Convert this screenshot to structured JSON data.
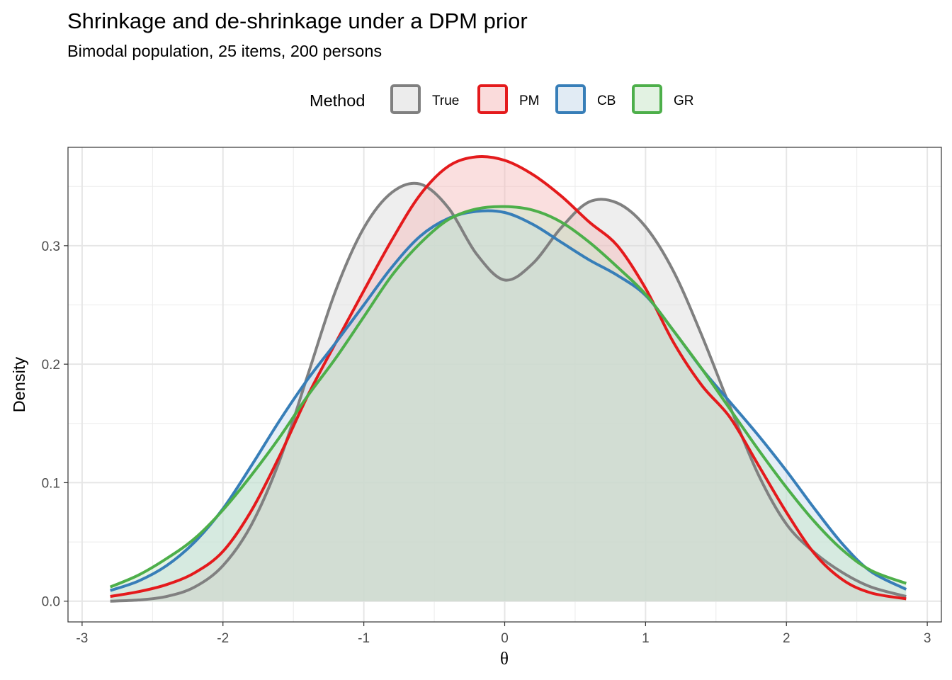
{
  "chart_data": {
    "type": "area",
    "title": "Shrinkage and de-shrinkage under a DPM prior",
    "subtitle": "Bimodal population, 25 items, 200 persons",
    "xlabel": "θ",
    "ylabel": "Density",
    "xlim": [
      -3,
      3
    ],
    "ylim": [
      0,
      0.38
    ],
    "x_ticks": [
      -3,
      -2,
      -1,
      0,
      1,
      2,
      3
    ],
    "x_tick_labels": [
      "-3",
      "-2",
      "-1",
      "0",
      "1",
      "2",
      "3"
    ],
    "y_ticks": [
      0.0,
      0.1,
      0.2,
      0.3
    ],
    "y_tick_labels": [
      "0.0",
      "0.1",
      "0.2",
      "0.3"
    ],
    "grid": true,
    "legend": {
      "title": "Method",
      "position": "top"
    },
    "x": [
      -2.8,
      -2.6,
      -2.4,
      -2.2,
      -2.0,
      -1.8,
      -1.6,
      -1.4,
      -1.2,
      -1.0,
      -0.8,
      -0.6,
      -0.4,
      -0.2,
      0.0,
      0.2,
      0.4,
      0.6,
      0.8,
      1.0,
      1.2,
      1.4,
      1.6,
      1.8,
      2.0,
      2.2,
      2.4,
      2.6,
      2.85
    ],
    "series": [
      {
        "name": "True",
        "color": "#808080",
        "fill": "#d9d9d9",
        "values": [
          0.0,
          0.001,
          0.004,
          0.012,
          0.03,
          0.064,
          0.118,
          0.19,
          0.262,
          0.315,
          0.345,
          0.352,
          0.332,
          0.293,
          0.271,
          0.285,
          0.315,
          0.337,
          0.336,
          0.316,
          0.278,
          0.224,
          0.164,
          0.107,
          0.065,
          0.041,
          0.024,
          0.012,
          0.004
        ]
      },
      {
        "name": "PM",
        "color": "#e41a1c",
        "fill": "#f5b7b8",
        "values": [
          0.004,
          0.008,
          0.014,
          0.024,
          0.042,
          0.076,
          0.122,
          0.173,
          0.218,
          0.262,
          0.305,
          0.343,
          0.367,
          0.375,
          0.372,
          0.36,
          0.342,
          0.32,
          0.3,
          0.264,
          0.218,
          0.182,
          0.155,
          0.115,
          0.075,
          0.04,
          0.018,
          0.007,
          0.002
        ]
      },
      {
        "name": "CB",
        "color": "#377eb8",
        "fill": "#c3d8ea",
        "values": [
          0.009,
          0.017,
          0.03,
          0.05,
          0.078,
          0.114,
          0.152,
          0.187,
          0.218,
          0.25,
          0.282,
          0.308,
          0.323,
          0.329,
          0.328,
          0.318,
          0.303,
          0.288,
          0.275,
          0.258,
          0.228,
          0.196,
          0.168,
          0.14,
          0.11,
          0.078,
          0.048,
          0.025,
          0.01
        ]
      },
      {
        "name": "GR",
        "color": "#4daf4a",
        "fill": "#c6e6c5",
        "values": [
          0.012,
          0.022,
          0.036,
          0.053,
          0.077,
          0.106,
          0.138,
          0.173,
          0.205,
          0.24,
          0.275,
          0.302,
          0.322,
          0.331,
          0.333,
          0.33,
          0.32,
          0.303,
          0.282,
          0.259,
          0.228,
          0.196,
          0.162,
          0.128,
          0.096,
          0.067,
          0.043,
          0.026,
          0.015
        ]
      }
    ]
  }
}
